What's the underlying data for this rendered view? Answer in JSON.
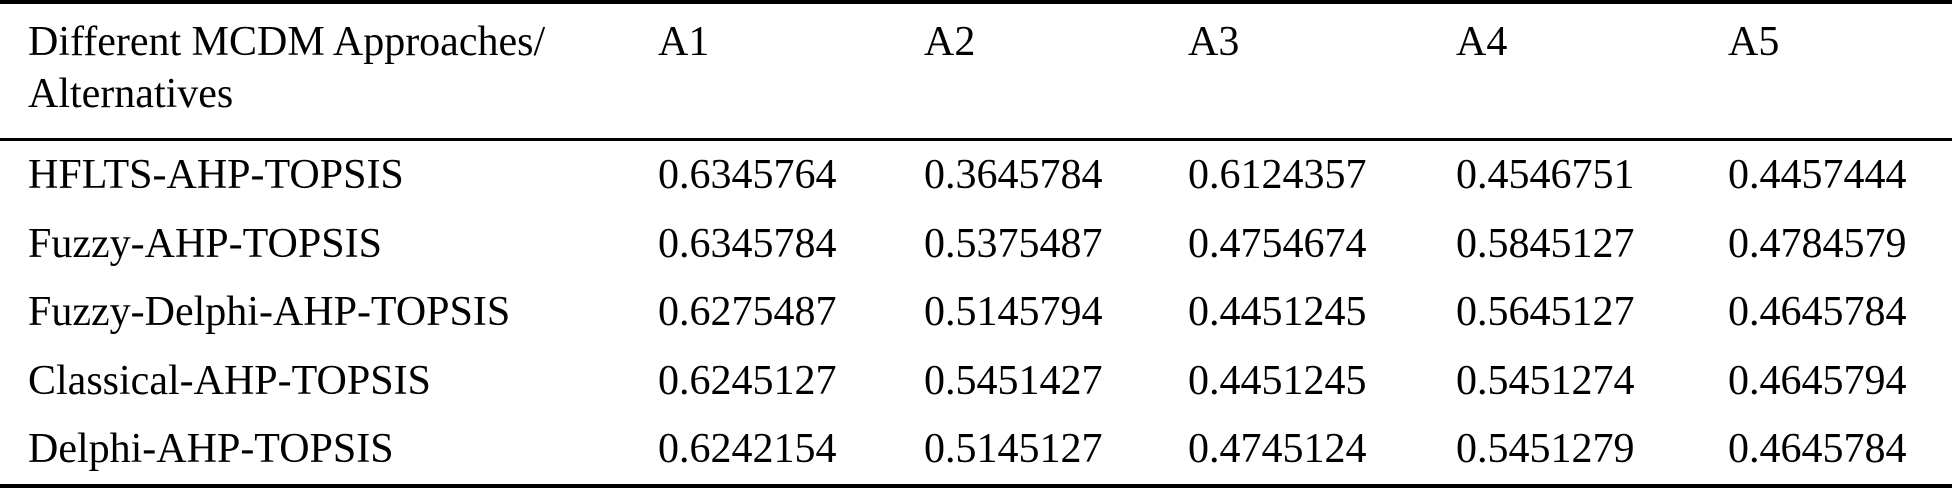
{
  "table": {
    "header": {
      "approaches_line1": "Different MCDM Approaches/",
      "approaches_line2": "Alternatives",
      "columns": [
        "A1",
        "A2",
        "A3",
        "A4",
        "A5"
      ]
    },
    "rows": [
      {
        "label": "HFLTS-AHP-TOPSIS",
        "values": [
          "0.6345764",
          "0.3645784",
          "0.6124357",
          "0.4546751",
          "0.4457444"
        ]
      },
      {
        "label": "Fuzzy-AHP-TOPSIS",
        "values": [
          "0.6345784",
          "0.5375487",
          "0.4754674",
          "0.5845127",
          "0.4784579"
        ]
      },
      {
        "label": "Fuzzy-Delphi-AHP-TOPSIS",
        "values": [
          "0.6275487",
          "0.5145794",
          "0.4451245",
          "0.5645127",
          "0.4645784"
        ]
      },
      {
        "label": "Classical-AHP-TOPSIS",
        "values": [
          "0.6245127",
          "0.5451427",
          "0.4451245",
          "0.5451274",
          "0.4645794"
        ]
      },
      {
        "label": "Delphi-AHP-TOPSIS",
        "values": [
          "0.6242154",
          "0.5145127",
          "0.4745124",
          "0.5451279",
          "0.4645784"
        ]
      }
    ],
    "colors": {
      "text": "#000000",
      "rule": "#000000",
      "background": "#ffffff"
    }
  },
  "chart_data": {
    "type": "table",
    "title": "",
    "columns": [
      "Different MCDM Approaches/Alternatives",
      "A1",
      "A2",
      "A3",
      "A4",
      "A5"
    ],
    "rows": [
      [
        "HFLTS-AHP-TOPSIS",
        0.6345764,
        0.3645784,
        0.6124357,
        0.4546751,
        0.4457444
      ],
      [
        "Fuzzy-AHP-TOPSIS",
        0.6345784,
        0.5375487,
        0.4754674,
        0.5845127,
        0.4784579
      ],
      [
        "Fuzzy-Delphi-AHP-TOPSIS",
        0.6275487,
        0.5145794,
        0.4451245,
        0.5645127,
        0.4645784
      ],
      [
        "Classical-AHP-TOPSIS",
        0.6245127,
        0.5451427,
        0.4451245,
        0.5451274,
        0.4645794
      ],
      [
        "Delphi-AHP-TOPSIS",
        0.6242154,
        0.5145127,
        0.4745124,
        0.5451279,
        0.4645784
      ]
    ]
  }
}
